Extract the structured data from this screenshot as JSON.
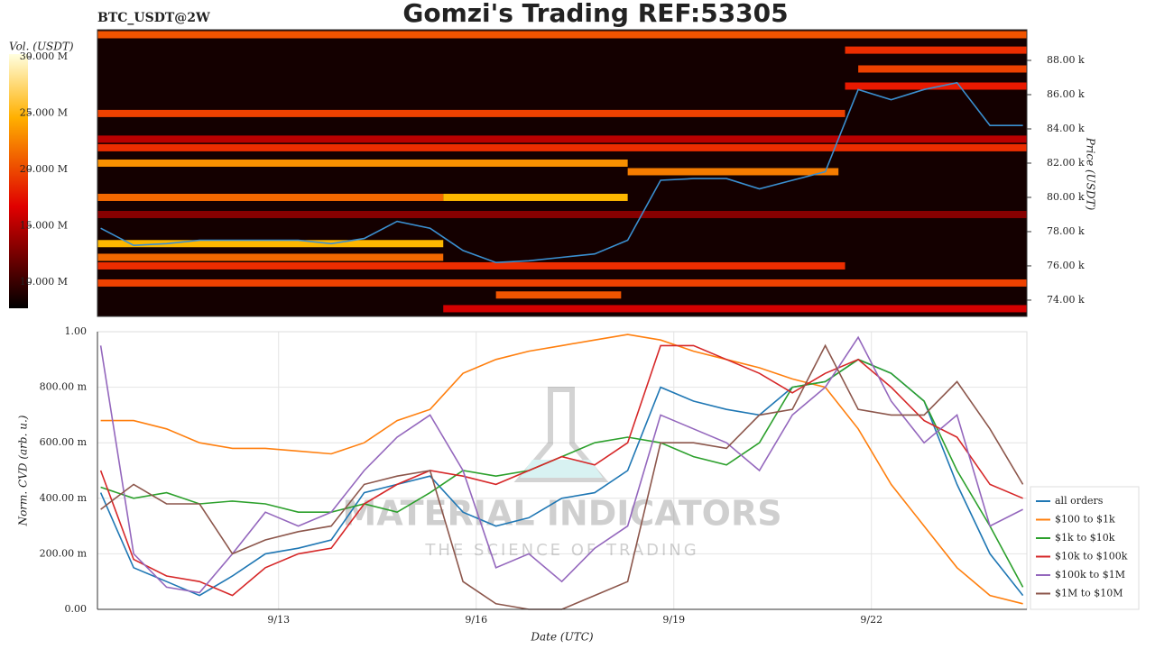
{
  "chart_data": [
    {
      "type": "heatmap",
      "title": "Gomzi's Trading REF:53305",
      "subtitle": "BTC_USDT@2W",
      "ylabel": "Price (USDT)",
      "colorbar_label": "Vol. (USDT)",
      "xlim": [
        10.25,
        24.36
      ],
      "ylim": [
        73050,
        89790
      ],
      "yticks": [
        {
          "value": 74000,
          "label": "74.00 k"
        },
        {
          "value": 76000,
          "label": "76.00 k"
        },
        {
          "value": 78000,
          "label": "78.00 k"
        },
        {
          "value": 80000,
          "label": "80.00 k"
        },
        {
          "value": 82000,
          "label": "82.00 k"
        },
        {
          "value": 84000,
          "label": "84.00 k"
        },
        {
          "value": 86000,
          "label": "86.00 k"
        },
        {
          "value": 88000,
          "label": "88.00 k"
        }
      ],
      "clim": [
        7700000,
        30240000
      ],
      "colorbar_ticks": [
        {
          "value": 10000000,
          "label": "10.000 M"
        },
        {
          "value": 15000000,
          "label": "15.000 M"
        },
        {
          "value": 20000000,
          "label": "20.000 M"
        },
        {
          "value": 25000000,
          "label": "25.000 M"
        },
        {
          "value": 30000000,
          "label": "30.000 M"
        }
      ],
      "levels": [
        {
          "price": 89500,
          "from": 10.25,
          "to": 24.36,
          "volume": 21000000
        },
        {
          "price": 88600,
          "from": 21.6,
          "to": 24.36,
          "volume": 19000000
        },
        {
          "price": 87500,
          "from": 21.8,
          "to": 24.36,
          "volume": 20000000
        },
        {
          "price": 86500,
          "from": 21.6,
          "to": 24.36,
          "volume": 18000000
        },
        {
          "price": 84900,
          "from": 10.25,
          "to": 21.6,
          "volume": 20000000
        },
        {
          "price": 83400,
          "from": 10.25,
          "to": 24.36,
          "volume": 15000000
        },
        {
          "price": 82900,
          "from": 10.25,
          "to": 24.36,
          "volume": 19000000
        },
        {
          "price": 82000,
          "from": 10.25,
          "to": 18.3,
          "volume": 24000000
        },
        {
          "price": 81500,
          "from": 18.3,
          "to": 21.5,
          "volume": 23000000
        },
        {
          "price": 80000,
          "from": 10.25,
          "to": 15.5,
          "volume": 22000000
        },
        {
          "price": 80000,
          "from": 15.5,
          "to": 18.3,
          "volume": 26000000
        },
        {
          "price": 79000,
          "from": 10.25,
          "to": 24.36,
          "volume": 13000000
        },
        {
          "price": 77300,
          "from": 10.25,
          "to": 15.5,
          "volume": 26000000
        },
        {
          "price": 76500,
          "from": 10.25,
          "to": 15.5,
          "volume": 22000000
        },
        {
          "price": 76000,
          "from": 10.25,
          "to": 21.6,
          "volume": 19000000
        },
        {
          "price": 75000,
          "from": 10.25,
          "to": 24.36,
          "volume": 20000000
        },
        {
          "price": 74300,
          "from": 16.3,
          "to": 18.2,
          "volume": 21000000
        },
        {
          "price": 73500,
          "from": 15.5,
          "to": 24.36,
          "volume": 16000000
        }
      ],
      "x": [
        10.3,
        10.8,
        11.3,
        11.8,
        12.3,
        12.8,
        13.3,
        13.8,
        14.3,
        14.8,
        15.3,
        15.8,
        16.3,
        16.8,
        17.3,
        17.8,
        18.3,
        18.8,
        19.3,
        19.8,
        20.3,
        20.8,
        21.3,
        21.8,
        22.3,
        22.8,
        23.3,
        23.8,
        24.3
      ],
      "price_color": "#3a8fd0",
      "values": [
        78200,
        77200,
        77300,
        77500,
        77500,
        77500,
        77500,
        77300,
        77600,
        78600,
        78200,
        76900,
        76200,
        76300,
        76500,
        76700,
        77500,
        81000,
        81100,
        81100,
        80500,
        81000,
        81500,
        86300,
        85700,
        86300,
        86700,
        84200,
        84200
      ]
    },
    {
      "type": "line",
      "ylabel": "Norm. CVD (arb. u.)",
      "xlabel": "Date (UTC)",
      "watermark": "MATERIAL INDICATORS",
      "watermark_subtitle": "THE SCIENCE OF TRADING",
      "xlim": [
        10.25,
        24.36
      ],
      "ylim": [
        0,
        1
      ],
      "xticks": [
        {
          "value": 13,
          "label": "9/13"
        },
        {
          "value": 16,
          "label": "9/16"
        },
        {
          "value": 19,
          "label": "9/19"
        },
        {
          "value": 22,
          "label": "9/22"
        }
      ],
      "yticks": [
        {
          "value": 0,
          "label": "0.00"
        },
        {
          "value": 0.2,
          "label": "200.00 m"
        },
        {
          "value": 0.4,
          "label": "400.00 m"
        },
        {
          "value": 0.6,
          "label": "600.00 m"
        },
        {
          "value": 0.8,
          "label": "800.00 m"
        },
        {
          "value": 1,
          "label": "1.00"
        }
      ],
      "grid": true,
      "x": [
        10.3,
        10.8,
        11.3,
        11.8,
        12.3,
        12.8,
        13.3,
        13.8,
        14.3,
        14.8,
        15.3,
        15.8,
        16.3,
        16.8,
        17.3,
        17.8,
        18.3,
        18.8,
        19.3,
        19.8,
        20.3,
        20.8,
        21.3,
        21.8,
        22.3,
        22.8,
        23.3,
        23.8,
        24.3
      ],
      "series": [
        {
          "name": "all orders",
          "color": "#1f77b4",
          "values": [
            0.42,
            0.15,
            0.1,
            0.05,
            0.12,
            0.2,
            0.22,
            0.25,
            0.42,
            0.45,
            0.48,
            0.35,
            0.3,
            0.33,
            0.4,
            0.42,
            0.5,
            0.8,
            0.75,
            0.72,
            0.7,
            0.8,
            0.82,
            0.9,
            0.85,
            0.75,
            0.45,
            0.2,
            0.05
          ]
        },
        {
          "name": "$100 to $1k",
          "color": "#ff7f0e",
          "values": [
            0.68,
            0.68,
            0.65,
            0.6,
            0.58,
            0.58,
            0.57,
            0.56,
            0.6,
            0.68,
            0.72,
            0.85,
            0.9,
            0.93,
            0.95,
            0.97,
            0.99,
            0.97,
            0.93,
            0.9,
            0.87,
            0.83,
            0.8,
            0.65,
            0.45,
            0.3,
            0.15,
            0.05,
            0.02
          ]
        },
        {
          "name": "$1k to $10k",
          "color": "#2ca02c",
          "values": [
            0.44,
            0.4,
            0.42,
            0.38,
            0.39,
            0.38,
            0.35,
            0.35,
            0.38,
            0.35,
            0.42,
            0.5,
            0.48,
            0.5,
            0.55,
            0.6,
            0.62,
            0.6,
            0.55,
            0.52,
            0.6,
            0.8,
            0.82,
            0.9,
            0.85,
            0.75,
            0.5,
            0.3,
            0.08
          ]
        },
        {
          "name": "$10k to $100k",
          "color": "#d62728",
          "values": [
            0.5,
            0.18,
            0.12,
            0.1,
            0.05,
            0.15,
            0.2,
            0.22,
            0.38,
            0.45,
            0.5,
            0.48,
            0.45,
            0.5,
            0.55,
            0.52,
            0.6,
            0.95,
            0.95,
            0.9,
            0.85,
            0.78,
            0.85,
            0.9,
            0.8,
            0.68,
            0.62,
            0.45,
            0.4
          ]
        },
        {
          "name": "$100k to $1M",
          "color": "#9467bd",
          "values": [
            0.95,
            0.2,
            0.08,
            0.06,
            0.2,
            0.35,
            0.3,
            0.35,
            0.5,
            0.62,
            0.7,
            0.5,
            0.15,
            0.2,
            0.1,
            0.22,
            0.3,
            0.7,
            0.65,
            0.6,
            0.5,
            0.7,
            0.8,
            0.98,
            0.75,
            0.6,
            0.7,
            0.3,
            0.36
          ]
        },
        {
          "name": "$1M to $10M",
          "color": "#8c564b",
          "values": [
            0.36,
            0.45,
            0.38,
            0.38,
            0.2,
            0.25,
            0.28,
            0.3,
            0.45,
            0.48,
            0.5,
            0.1,
            0.02,
            0,
            0,
            0.05,
            0.1,
            0.6,
            0.6,
            0.58,
            0.7,
            0.72,
            0.95,
            0.72,
            0.7,
            0.7,
            0.82,
            0.65,
            0.45
          ]
        }
      ]
    }
  ]
}
